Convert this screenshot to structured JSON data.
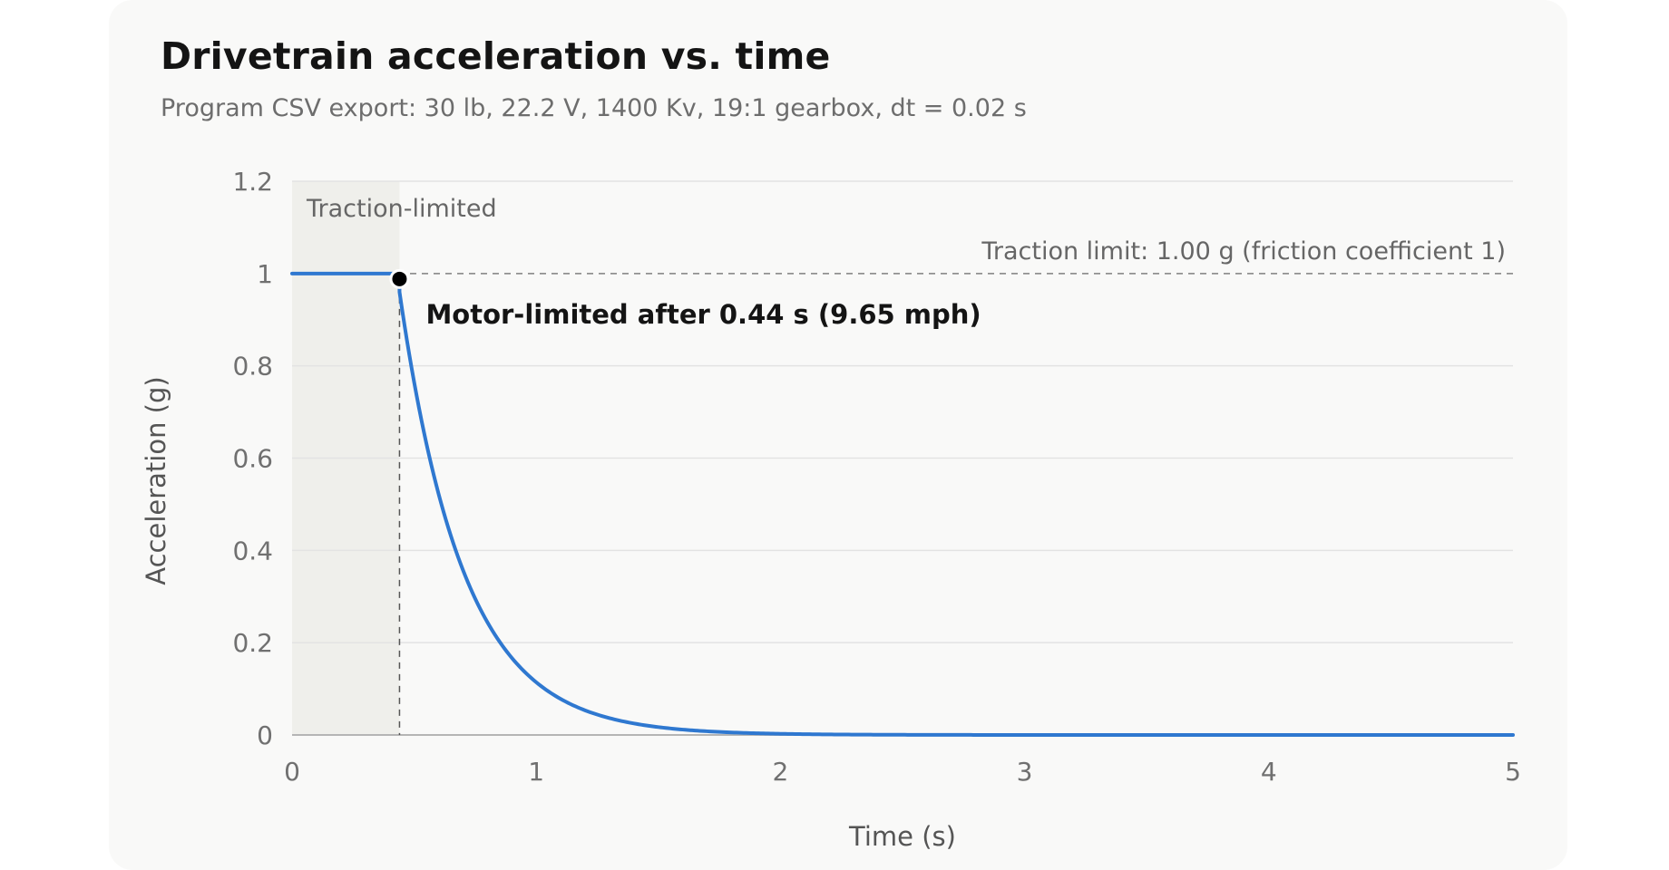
{
  "chart_data": {
    "type": "line",
    "title": "Drivetrain acceleration vs. time",
    "subtitle": "Program CSV export: 30 lb, 22.2 V, 1400 Kv, 19:1 gearbox, dt = 0.02 s",
    "xlabel": "Time (s)",
    "ylabel": "Acceleration (g)",
    "xlim": [
      0,
      5
    ],
    "ylim": [
      0,
      1.2
    ],
    "x_ticks": [
      "0",
      "1",
      "2",
      "3",
      "4",
      "5"
    ],
    "y_ticks": [
      "0",
      "0.2",
      "0.4",
      "0.6",
      "0.8",
      "1",
      "1.2"
    ],
    "grid": "horizontal",
    "legend": "none",
    "colors": {
      "line": "#2f78d0",
      "traction_band": "#efefeb",
      "grid": "#e3e3e3",
      "reference": "#808080",
      "marker": "#000000"
    },
    "series": [
      {
        "x": [
          0,
          0.44,
          0.44,
          0.5,
          0.6,
          0.7,
          0.8,
          0.9,
          1.0,
          1.1,
          1.2,
          1.3,
          1.4,
          1.5,
          1.6,
          1.8,
          2.0,
          2.5,
          3.0,
          4.0,
          5.0
        ],
        "y": [
          1.0,
          1.0,
          0.96,
          0.82,
          0.61,
          0.44,
          0.31,
          0.21,
          0.13,
          0.085,
          0.055,
          0.036,
          0.024,
          0.016,
          0.011,
          0.005,
          0.002,
          0.0005,
          0.0002,
          0.0,
          0.0
        ]
      }
    ],
    "regions": [
      {
        "label": "Traction-limited",
        "x_start": 0,
        "x_end": 0.44
      }
    ],
    "reference_lines": [
      {
        "y": 1.0,
        "label": "Traction limit: 1.00 g (friction coefficient 1)"
      }
    ],
    "annotations": [
      {
        "x": 0.44,
        "y": 1.0,
        "text": "Motor-limited after 0.44 s (9.65 mph)"
      }
    ]
  }
}
